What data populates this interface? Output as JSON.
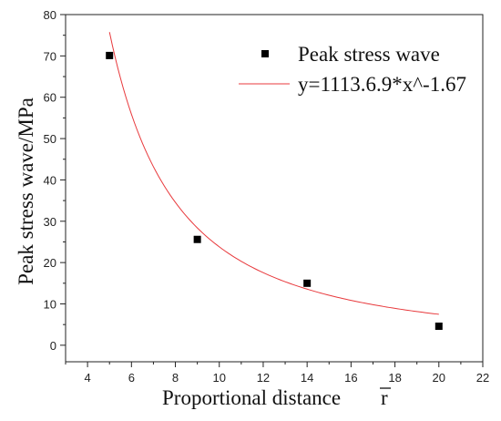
{
  "chart_data": {
    "type": "scatter",
    "xlabel": "Proportional distance",
    "xlabel_symbol": "r",
    "ylabel": "Peak stress wave/MPa",
    "xlim": [
      3,
      22
    ],
    "ylim": [
      -4,
      80
    ],
    "x_ticks": [
      "4",
      "6",
      "8",
      "10",
      "12",
      "14",
      "16",
      "18",
      "20",
      "22"
    ],
    "y_ticks": [
      "0",
      "10",
      "20",
      "30",
      "40",
      "50",
      "60",
      "70",
      "80"
    ],
    "grid": false,
    "legend_position": "top-right",
    "series": [
      {
        "name": "Peak stress wave",
        "kind": "scatter",
        "marker": "square",
        "color": "#000000",
        "x": [
          5,
          9,
          14,
          20
        ],
        "y": [
          70.1,
          25.6,
          15.0,
          4.6
        ]
      },
      {
        "name": "y=1113.6.9*x^-1.67",
        "kind": "fit-line",
        "color": "#e8393c",
        "coefficient": 1113.6,
        "exponent": -1.67,
        "x_range": [
          5,
          20
        ]
      }
    ]
  }
}
